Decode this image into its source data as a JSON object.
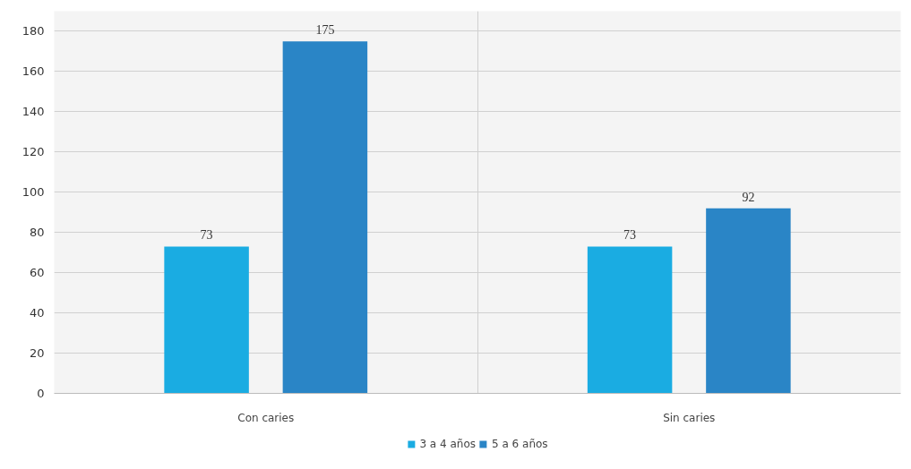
{
  "chart_data": {
    "type": "bar",
    "categories": [
      "Con caries",
      "Sin caries"
    ],
    "series": [
      {
        "name": "3 a 4 años",
        "color": "#1aace2",
        "values": [
          73,
          73
        ]
      },
      {
        "name": "5 a 6 años",
        "color": "#2a85c6",
        "values": [
          175,
          92
        ]
      }
    ],
    "ylim": [
      0,
      190
    ],
    "yticks": [
      0,
      20,
      40,
      60,
      80,
      100,
      120,
      140,
      160,
      180
    ],
    "grid": true,
    "legend": "bottom",
    "data_labels": true
  }
}
